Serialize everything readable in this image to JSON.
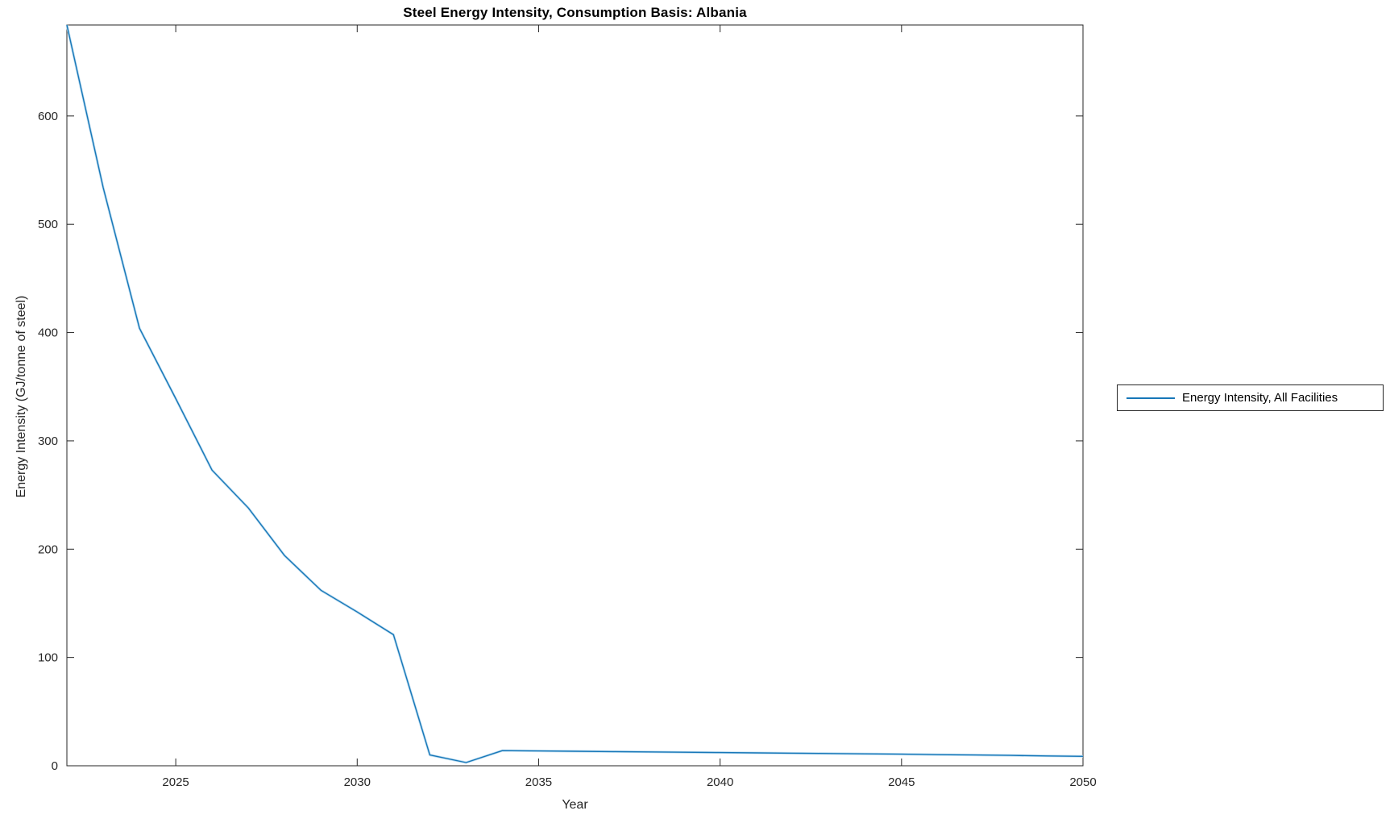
{
  "figure": {
    "title": "Steel Energy Intensity, Consumption Basis: Albania",
    "xlabel": "Year",
    "ylabel": "Energy Intensity (GJ/tonne of steel)"
  },
  "legend": {
    "label": "Energy Intensity, All Facilities"
  },
  "colors": {
    "line": "#1777b8",
    "line_halo": "#b7d9ee",
    "axis": "#262626",
    "background": "#ffffff"
  },
  "chart_data": {
    "type": "line",
    "title": "Steel Energy Intensity, Consumption Basis: Albania",
    "xlabel": "Year",
    "ylabel": "Energy Intensity (GJ/tonne of steel)",
    "legend_position": "right-outside",
    "grid": false,
    "xlim": [
      2022,
      2050
    ],
    "ylim": [
      0,
      684
    ],
    "x_ticks": [
      2025,
      2030,
      2035,
      2040,
      2045,
      2050
    ],
    "y_ticks": [
      0,
      100,
      200,
      300,
      400,
      500,
      600
    ],
    "series": [
      {
        "name": "Energy Intensity, All Facilities",
        "x": [
          2022,
          2023,
          2024,
          2025,
          2026,
          2027,
          2028,
          2029,
          2030,
          2031,
          2032,
          2033,
          2034,
          2035,
          2036,
          2037,
          2038,
          2039,
          2040,
          2041,
          2042,
          2043,
          2044,
          2045,
          2046,
          2047,
          2048,
          2049,
          2050
        ],
        "values": [
          684,
          534,
          404,
          339,
          273,
          238,
          194,
          162,
          142,
          121,
          10,
          3,
          14,
          13.7,
          13.4,
          13.1,
          12.8,
          12.5,
          12.2,
          11.9,
          11.6,
          11.3,
          11.0,
          10.7,
          10.3,
          10.0,
          9.6,
          9.1,
          8.7
        ]
      }
    ]
  }
}
